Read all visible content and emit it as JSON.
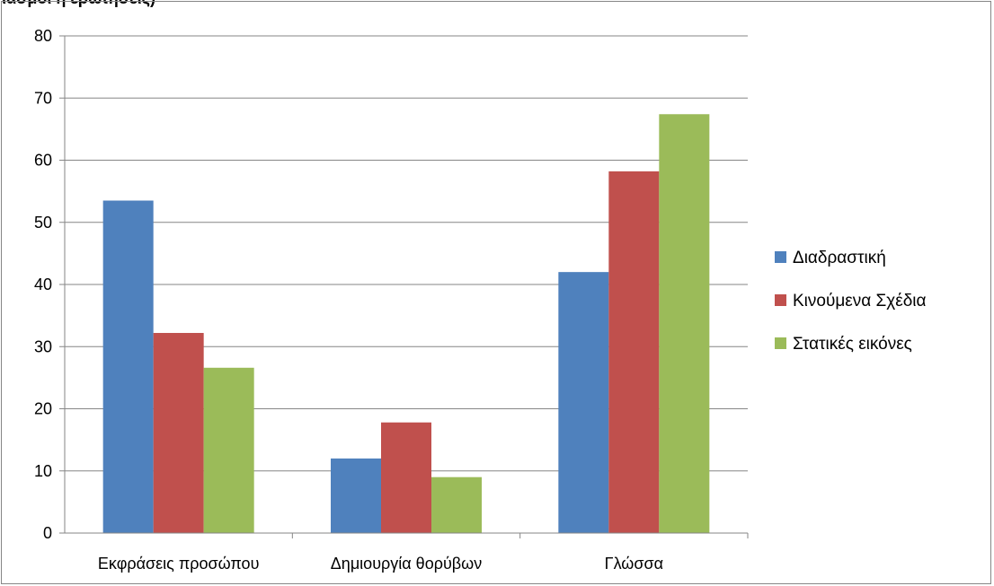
{
  "figure": {
    "cut_off_top_text": "ιασμοί ή ερωτήσεις)"
  },
  "chart_data": {
    "type": "bar",
    "categories": [
      "Εκφράσεις προσώπου",
      "Δημιουργία θορύβων",
      "Γλώσσα"
    ],
    "series": [
      {
        "name": "Διαδραστική",
        "values": [
          53.5,
          12,
          42
        ],
        "color": "#4F81BD"
      },
      {
        "name": "Κινούμενα Σχέδια",
        "values": [
          32.2,
          17.8,
          58.2
        ],
        "color": "#C0504D"
      },
      {
        "name": "Στατικές εικόνες",
        "values": [
          26.6,
          9,
          67.4
        ],
        "color": "#9BBB59"
      }
    ],
    "y_ticks": [
      "0",
      "10",
      "20",
      "30",
      "40",
      "50",
      "60",
      "70",
      "80"
    ],
    "ylim": [
      0,
      80
    ],
    "grid": true,
    "legend_position": "right",
    "title": "",
    "xlabel": "",
    "ylabel": ""
  }
}
